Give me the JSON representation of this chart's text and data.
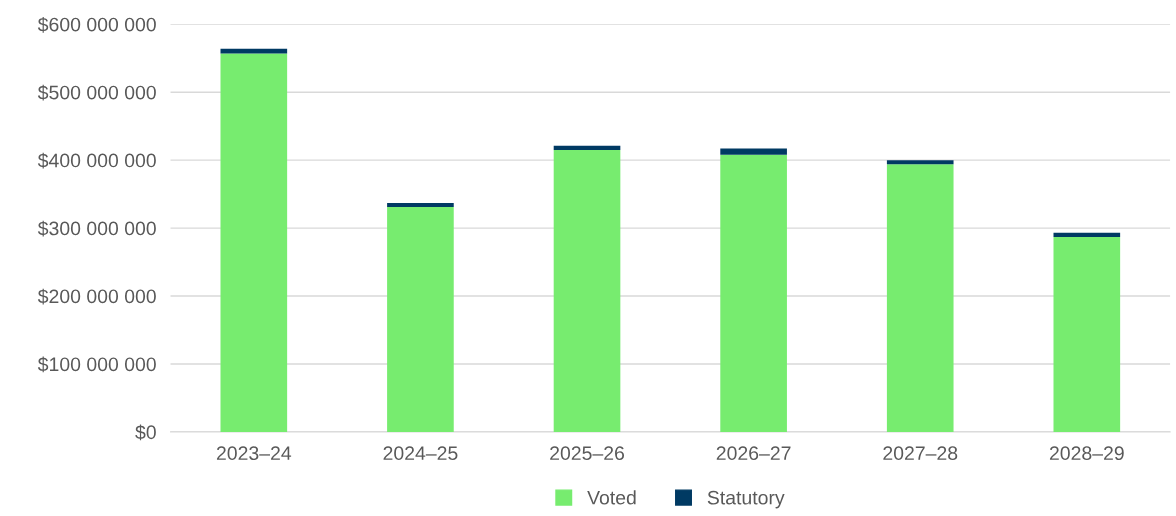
{
  "chart_data": {
    "type": "bar",
    "stacked": true,
    "categories": [
      "2023–24",
      "2024–25",
      "2025–26",
      "2026–27",
      "2027–28",
      "2028–29"
    ],
    "series": [
      {
        "name": "Voted",
        "color": "#77ec6f",
        "values": [
          557000000,
          331000000,
          415000000,
          408000000,
          394000000,
          287000000
        ]
      },
      {
        "name": "Statutory",
        "color": "#003a63",
        "values": [
          7000000,
          6000000,
          6000000,
          9000000,
          6000000,
          6000000
        ]
      }
    ],
    "ylim": [
      0,
      600000000
    ],
    "yticks": [
      {
        "value": 0,
        "label": "$0"
      },
      {
        "value": 100000000,
        "label": "$100 000 000"
      },
      {
        "value": 200000000,
        "label": "$200 000 000"
      },
      {
        "value": 300000000,
        "label": "$300 000 000"
      },
      {
        "value": 400000000,
        "label": "$400 000 000"
      },
      {
        "value": 500000000,
        "label": "$500 000 000"
      },
      {
        "value": 600000000,
        "label": "$600 000 000"
      }
    ],
    "grid": "y",
    "legend": "bottom"
  }
}
